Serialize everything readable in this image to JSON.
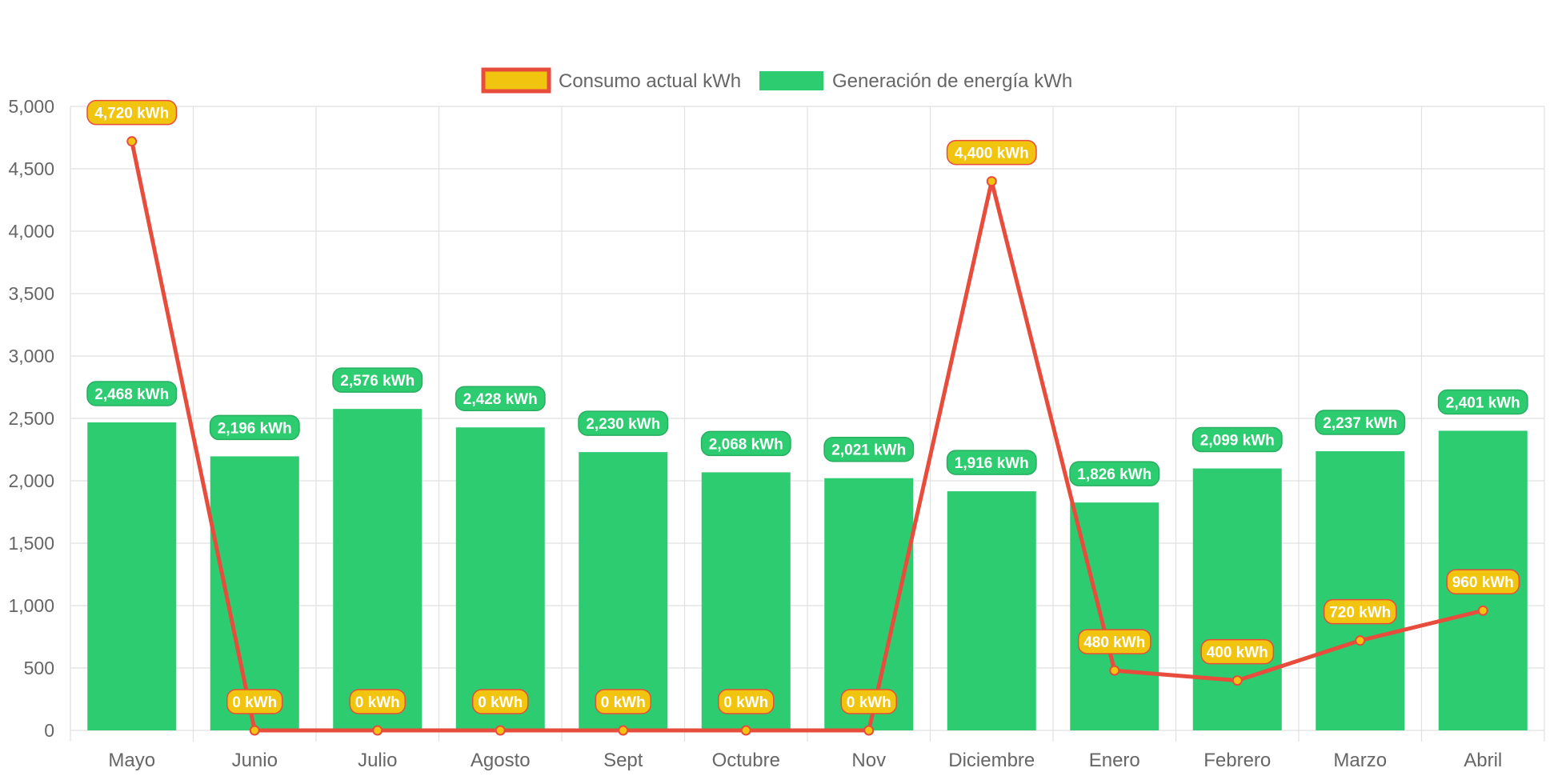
{
  "colors": {
    "bar": "#2ecc71",
    "bar_label_bg": "#2ecc71",
    "bar_label_border": "#27ae60",
    "line": "#e74c3c",
    "point_fill": "#f1c40f",
    "line_label_bg": "#f1c40f",
    "grid": "#e1e1e1",
    "axis_text": "#666666"
  },
  "chart_data": {
    "type": "bar",
    "title": "",
    "xlabel": "",
    "ylabel": "",
    "categories": [
      "Mayo",
      "Junio",
      "Julio",
      "Agosto",
      "Sept",
      "Octubre",
      "Nov",
      "Diciembre",
      "Enero",
      "Febrero",
      "Marzo",
      "Abril"
    ],
    "ylim": [
      0,
      5000
    ],
    "yticks": [
      {
        "value": 0,
        "label": "0"
      },
      {
        "value": 500,
        "label": "500"
      },
      {
        "value": 1000,
        "label": "1,000"
      },
      {
        "value": 1500,
        "label": "1,500"
      },
      {
        "value": 2000,
        "label": "2,000"
      },
      {
        "value": 2500,
        "label": "2,500"
      },
      {
        "value": 3000,
        "label": "3,000"
      },
      {
        "value": 3500,
        "label": "3,500"
      },
      {
        "value": 4000,
        "label": "4,000"
      },
      {
        "value": 4500,
        "label": "4,500"
      },
      {
        "value": 5000,
        "label": "5,000"
      }
    ],
    "grid": true,
    "legend_position": "top-center",
    "series": [
      {
        "name": "Consumo actual kWh",
        "type": "line",
        "values": [
          4720,
          0,
          0,
          0,
          0,
          0,
          0,
          4400,
          480,
          400,
          720,
          960
        ],
        "labels": [
          "4,720 kWh",
          "0 kWh",
          "0 kWh",
          "0 kWh",
          "0 kWh",
          "0 kWh",
          "0 kWh",
          "4,400 kWh",
          "480 kWh",
          "400 kWh",
          "720 kWh",
          "960 kWh"
        ]
      },
      {
        "name": "Generación de energía kWh",
        "type": "bar",
        "values": [
          2468,
          2196,
          2576,
          2428,
          2230,
          2068,
          2021,
          1916,
          1826,
          2099,
          2237,
          2401
        ],
        "labels": [
          "2,468 kWh",
          "2,196 kWh",
          "2,576 kWh",
          "2,428 kWh",
          "2,230 kWh",
          "2,068 kWh",
          "2,021 kWh",
          "1,916 kWh",
          "1,826 kWh",
          "2,099 kWh",
          "2,237 kWh",
          "2,401 kWh"
        ]
      }
    ]
  }
}
